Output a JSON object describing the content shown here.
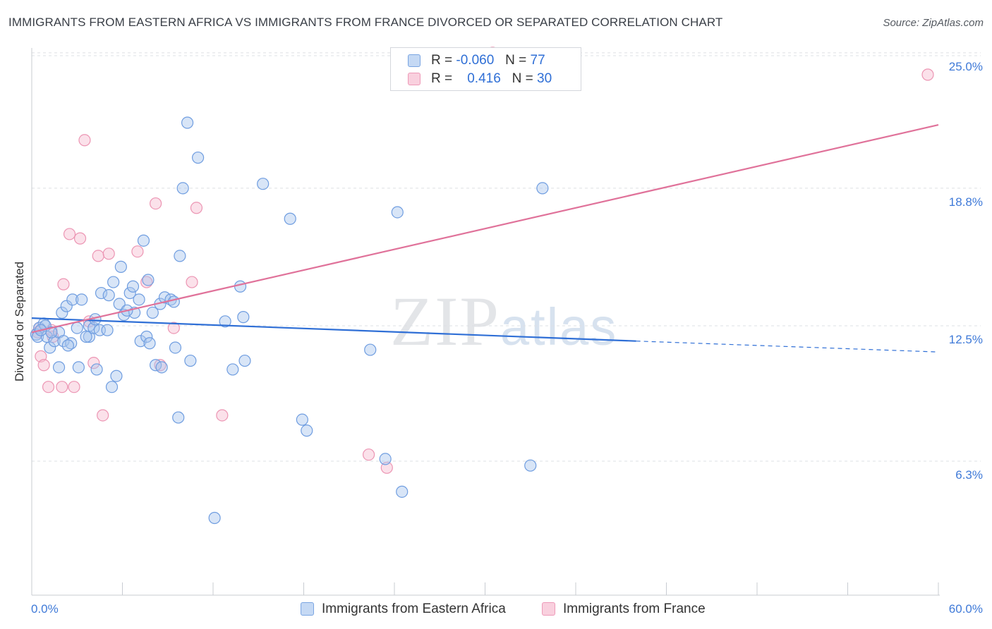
{
  "header": {
    "title": "IMMIGRANTS FROM EASTERN AFRICA VS IMMIGRANTS FROM FRANCE DIVORCED OR SEPARATED CORRELATION CHART",
    "source": "Source: ZipAtlas.com"
  },
  "watermark": {
    "bold": "ZIP",
    "light": "atlas"
  },
  "legend_top": {
    "rows": [
      {
        "r_label": "R =",
        "r_value": "-0.060",
        "n_label": "N =",
        "n_value": "77"
      },
      {
        "r_label": "R =",
        "r_value": "0.416",
        "n_label": "N =",
        "n_value": "30"
      }
    ]
  },
  "colors": {
    "blue_fill": "#a9c6ee",
    "blue_stroke": "#6f9de0",
    "blue_line": "#2f6fd6",
    "pink_fill": "#f6bcd0",
    "pink_stroke": "#ec95b3",
    "pink_line": "#e0729a",
    "grid": "#dde0e4",
    "tick_text": "#3f7ad8"
  },
  "chart_data": {
    "type": "scatter",
    "title": "IMMIGRANTS FROM EASTERN AFRICA VS IMMIGRANTS FROM FRANCE DIVORCED OR SEPARATED CORRELATION CHART",
    "xlabel": "",
    "ylabel": "Divorced or Separated",
    "xlim": [
      0,
      60
    ],
    "ylim": [
      0,
      26
    ],
    "x_tick_labels": [
      "0.0%",
      "60.0%"
    ],
    "y_ticks": [
      {
        "value": 6.3,
        "label": "6.3%"
      },
      {
        "value": 12.5,
        "label": "12.5%"
      },
      {
        "value": 18.8,
        "label": "18.8%"
      },
      {
        "value": 25.0,
        "label": "25.0%"
      }
    ],
    "legend_placement": "top-center",
    "series": [
      {
        "name": "Immigrants from Eastern Africa",
        "color": "#a9c6ee",
        "r": -0.06,
        "n": 77,
        "trend": {
          "x0": 0,
          "y0": 12.85,
          "x1": 40,
          "y1": 11.8,
          "dashed_x1": 60,
          "dashed_y1": 11.3
        },
        "points": [
          [
            0.3,
            12.1
          ],
          [
            0.5,
            12.4
          ],
          [
            0.8,
            12.6
          ],
          [
            0.4,
            12.0
          ],
          [
            1.0,
            12.0
          ],
          [
            1.2,
            11.5
          ],
          [
            1.5,
            11.8
          ],
          [
            0.9,
            12.5
          ],
          [
            1.8,
            12.2
          ],
          [
            2.0,
            13.1
          ],
          [
            2.3,
            13.4
          ],
          [
            2.1,
            11.8
          ],
          [
            2.6,
            11.7
          ],
          [
            2.7,
            13.7
          ],
          [
            1.8,
            10.6
          ],
          [
            3.3,
            13.7
          ],
          [
            3.1,
            10.6
          ],
          [
            3.8,
            12.0
          ],
          [
            3.6,
            12.0
          ],
          [
            3.8,
            12.5
          ],
          [
            4.1,
            12.4
          ],
          [
            4.2,
            12.8
          ],
          [
            4.3,
            10.5
          ],
          [
            4.5,
            12.3
          ],
          [
            4.6,
            14.0
          ],
          [
            5.0,
            12.3
          ],
          [
            5.1,
            13.9
          ],
          [
            5.4,
            14.5
          ],
          [
            5.6,
            10.2
          ],
          [
            5.3,
            9.7
          ],
          [
            5.8,
            13.5
          ],
          [
            5.9,
            15.2
          ],
          [
            6.1,
            13.0
          ],
          [
            6.5,
            14.0
          ],
          [
            6.7,
            14.3
          ],
          [
            6.8,
            13.1
          ],
          [
            7.1,
            13.7
          ],
          [
            7.2,
            11.8
          ],
          [
            7.4,
            16.4
          ],
          [
            7.6,
            12.0
          ],
          [
            7.7,
            14.6
          ],
          [
            7.8,
            11.7
          ],
          [
            8.0,
            13.1
          ],
          [
            8.2,
            10.7
          ],
          [
            8.5,
            13.5
          ],
          [
            8.6,
            10.6
          ],
          [
            8.8,
            13.8
          ],
          [
            9.2,
            13.7
          ],
          [
            9.4,
            13.6
          ],
          [
            9.5,
            11.5
          ],
          [
            9.7,
            8.3
          ],
          [
            9.8,
            15.7
          ],
          [
            10.0,
            18.8
          ],
          [
            10.3,
            21.8
          ],
          [
            10.5,
            10.9
          ],
          [
            11.0,
            20.2
          ],
          [
            12.8,
            12.7
          ],
          [
            13.3,
            10.5
          ],
          [
            13.8,
            14.3
          ],
          [
            14.0,
            12.9
          ],
          [
            14.1,
            10.9
          ],
          [
            15.3,
            19.0
          ],
          [
            17.1,
            17.4
          ],
          [
            17.9,
            8.2
          ],
          [
            18.2,
            7.7
          ],
          [
            22.4,
            11.4
          ],
          [
            23.4,
            6.4
          ],
          [
            24.2,
            17.7
          ],
          [
            24.5,
            4.9
          ],
          [
            33.0,
            6.1
          ],
          [
            33.8,
            18.8
          ],
          [
            12.1,
            3.7
          ],
          [
            1.3,
            12.2
          ],
          [
            2.4,
            11.6
          ],
          [
            6.3,
            13.2
          ],
          [
            3.0,
            12.4
          ],
          [
            0.6,
            12.3
          ]
        ]
      },
      {
        "name": "Immigrants from France",
        "color": "#f6bcd0",
        "r": 0.416,
        "n": 30,
        "trend": {
          "x0": 0,
          "y0": 12.2,
          "x1": 60,
          "y1": 21.7
        },
        "points": [
          [
            0.5,
            12.4
          ],
          [
            0.4,
            12.2
          ],
          [
            0.6,
            11.1
          ],
          [
            0.8,
            10.7
          ],
          [
            1.1,
            9.7
          ],
          [
            1.4,
            12.0
          ],
          [
            2.0,
            9.7
          ],
          [
            2.1,
            14.4
          ],
          [
            2.5,
            16.7
          ],
          [
            2.8,
            9.7
          ],
          [
            3.2,
            16.5
          ],
          [
            3.5,
            21.0
          ],
          [
            3.8,
            12.7
          ],
          [
            4.1,
            10.8
          ],
          [
            4.4,
            15.7
          ],
          [
            4.7,
            8.4
          ],
          [
            5.1,
            15.8
          ],
          [
            7.0,
            15.9
          ],
          [
            7.6,
            14.5
          ],
          [
            8.2,
            18.1
          ],
          [
            8.5,
            10.7
          ],
          [
            9.4,
            12.4
          ],
          [
            10.6,
            14.5
          ],
          [
            10.9,
            17.9
          ],
          [
            12.6,
            8.4
          ],
          [
            22.3,
            6.6
          ],
          [
            23.5,
            6.0
          ],
          [
            30.5,
            25.0
          ],
          [
            59.3,
            24.0
          ],
          [
            1.3,
            12.3
          ]
        ]
      }
    ]
  },
  "legend_bottom": {
    "items": [
      {
        "label": "Immigrants from Eastern Africa"
      },
      {
        "label": "Immigrants from France"
      }
    ]
  }
}
